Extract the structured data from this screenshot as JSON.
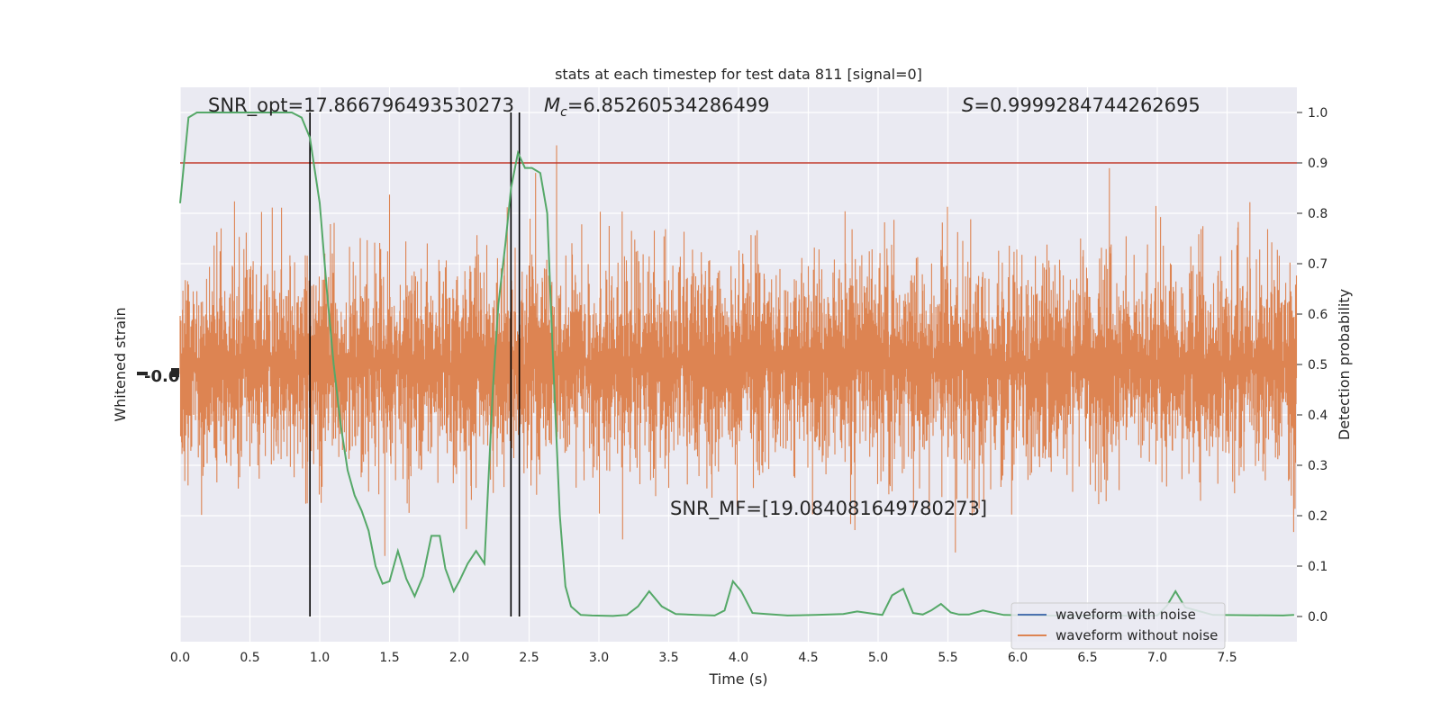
{
  "chart_data": {
    "type": "line",
    "title": "stats at each timestep for test data 811 [signal=0]",
    "xlabel": "Time (s)",
    "ylabel_left": "Whitened strain",
    "ylabel_right": "Detection probability",
    "xlim": [
      0.0,
      8.0
    ],
    "ylim_right": [
      -0.05,
      1.05
    ],
    "x_ticks": [
      "0.0",
      "0.5",
      "1.0",
      "1.5",
      "2.0",
      "2.5",
      "3.0",
      "3.5",
      "4.0",
      "4.5",
      "5.0",
      "5.5",
      "6.0",
      "6.5",
      "7.0",
      "7.5"
    ],
    "y_ticks_right": [
      "0.0",
      "0.1",
      "0.2",
      "0.3",
      "0.4",
      "0.5",
      "0.6",
      "0.7",
      "0.8",
      "0.9",
      "1.0"
    ],
    "grid": true,
    "legend_position": "lower-right",
    "annotations": {
      "snr_opt": "SNR_opt=17.866796493530273",
      "mc": "=6.85260534286499",
      "mc_symbol": "M",
      "mc_sub": "c",
      "s": "=0.9999284744262695",
      "s_symbol": "S",
      "snr_mf": "SNR_MF=[19.084081649780273]"
    },
    "threshold": {
      "value": 0.9,
      "color": "#c0392b"
    },
    "vertical_lines_x": [
      0.93,
      2.37,
      2.43
    ],
    "colors": {
      "waveform_with_noise": "#4c72b0",
      "waveform_without_noise": "#dd8452",
      "probability": "#55a868",
      "axes_bg": "#eaeaf2",
      "grid": "#ffffff"
    },
    "series": [
      {
        "name": "waveform with noise",
        "values": []
      },
      {
        "name": "waveform without noise",
        "values": []
      },
      {
        "type": "probability",
        "x": [
          0.0,
          0.06,
          0.12,
          0.2,
          0.3,
          0.4,
          0.5,
          0.6,
          0.7,
          0.8,
          0.87,
          0.93,
          1.0,
          1.05,
          1.1,
          1.15,
          1.2,
          1.25,
          1.3,
          1.35,
          1.4,
          1.45,
          1.5,
          1.56,
          1.62,
          1.68,
          1.74,
          1.8,
          1.86,
          1.9,
          1.96,
          2.0,
          2.06,
          2.12,
          2.18,
          2.24,
          2.28,
          2.33,
          2.37,
          2.42,
          2.47,
          2.52,
          2.58,
          2.63,
          2.67,
          2.72,
          2.76,
          2.8,
          2.87,
          2.95,
          3.1,
          3.2,
          3.28,
          3.36,
          3.45,
          3.55,
          3.7,
          3.83,
          3.9,
          3.96,
          4.02,
          4.1,
          4.2,
          4.35,
          4.55,
          4.75,
          4.85,
          4.95,
          5.03,
          5.1,
          5.18,
          5.25,
          5.32,
          5.38,
          5.45,
          5.52,
          5.58,
          5.65,
          5.75,
          5.9,
          6.1,
          6.5,
          7.0,
          7.07,
          7.13,
          7.2,
          7.4,
          7.9,
          7.98
        ],
        "values": [
          0.82,
          0.99,
          1.0,
          1.0,
          1.0,
          1.0,
          1.0,
          1.0,
          1.0,
          1.0,
          0.99,
          0.95,
          0.82,
          0.65,
          0.5,
          0.38,
          0.29,
          0.24,
          0.21,
          0.17,
          0.1,
          0.065,
          0.07,
          0.13,
          0.075,
          0.04,
          0.08,
          0.16,
          0.16,
          0.095,
          0.05,
          0.07,
          0.105,
          0.13,
          0.105,
          0.45,
          0.62,
          0.74,
          0.85,
          0.92,
          0.89,
          0.89,
          0.88,
          0.8,
          0.52,
          0.2,
          0.06,
          0.02,
          0.003,
          0.002,
          0.001,
          0.003,
          0.02,
          0.05,
          0.02,
          0.005,
          0.003,
          0.002,
          0.012,
          0.07,
          0.05,
          0.007,
          0.005,
          0.002,
          0.003,
          0.005,
          0.01,
          0.006,
          0.003,
          0.042,
          0.055,
          0.007,
          0.004,
          0.012,
          0.025,
          0.008,
          0.004,
          0.004,
          0.012,
          0.003,
          0.002,
          0.001,
          0.002,
          0.022,
          0.05,
          0.018,
          0.003,
          0.002,
          0.003
        ]
      }
    ]
  }
}
